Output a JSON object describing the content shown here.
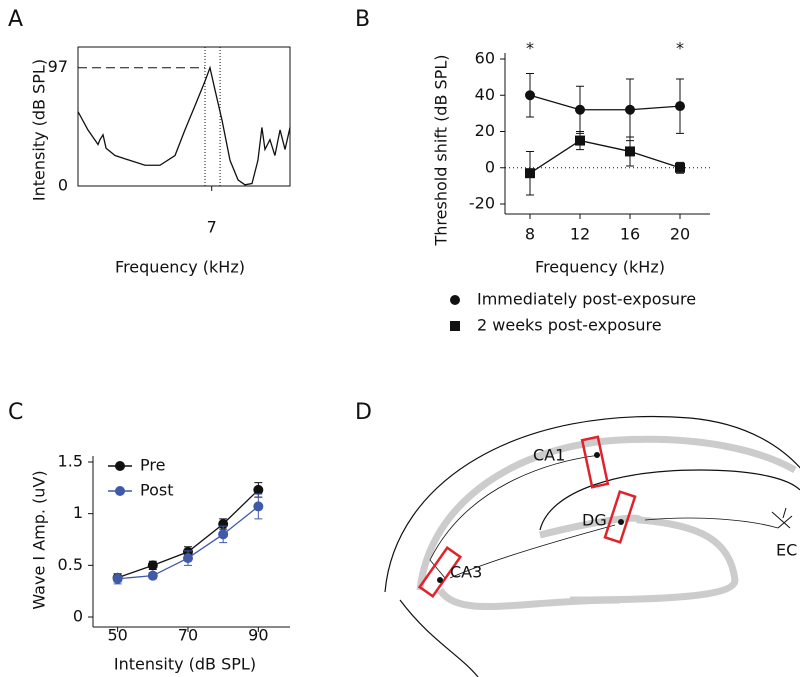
{
  "chart_data": [
    {
      "panel": "A",
      "type": "line",
      "xlabel": "Frequency (kHz)",
      "ylabel": "Intensity (dB SPL)",
      "x": [
        0,
        0.52,
        1.05,
        1.15,
        1.31,
        1.47,
        1.94,
        2.72,
        3.51,
        4.29,
        5.08,
        5.6,
        6.13,
        6.65,
        6.91,
        7.17,
        7.54,
        7.96,
        8.38,
        8.74,
        9.11,
        9.42,
        9.63,
        9.79,
        10.05,
        10.31,
        10.58,
        10.84,
        11.1
      ],
      "series": [
        {
          "color": "#111111",
          "values": [
            61,
            46,
            34,
            38,
            42,
            31,
            25,
            21,
            17,
            17,
            25,
            46,
            66,
            86,
            97,
            79,
            54,
            21,
            5,
            1,
            2,
            21,
            48,
            30,
            38,
            25,
            46,
            30,
            48
          ]
        }
      ],
      "xlim": [
        0,
        11.1
      ],
      "ylim": [
        0,
        114
      ],
      "xticks": [
        7
      ],
      "yticks": [
        0,
        97
      ],
      "hline": 97,
      "vlines": [
        6.65,
        7.44
      ]
    },
    {
      "panel": "B",
      "type": "line",
      "xlabel": "Frequency (kHz)",
      "ylabel": "Threshold shift (dB SPL)",
      "x": [
        8,
        12,
        16,
        20
      ],
      "series": [
        {
          "name": "Immediately post-exposure",
          "color": "#111111",
          "marker": "circle",
          "values": [
            40,
            32,
            32,
            34
          ],
          "errors": [
            12,
            13,
            17,
            15
          ]
        },
        {
          "name": "2 weeks post-exposure",
          "color": "#111111",
          "marker": "square",
          "values": [
            -3,
            15,
            9,
            0
          ],
          "errors": [
            12,
            5,
            8,
            3
          ]
        }
      ],
      "annotations": [
        {
          "text": "*",
          "x": 8
        },
        {
          "text": "*",
          "x": 20
        }
      ],
      "xlim": [
        6,
        22.4
      ],
      "ylim": [
        -20,
        60
      ],
      "xticks": [
        8,
        12,
        16,
        20
      ],
      "yticks": [
        -20,
        0,
        20,
        40,
        60
      ],
      "hline": 0
    },
    {
      "panel": "C",
      "type": "line",
      "xlabel": "Intensity (dB SPL)",
      "ylabel": "Wave I Amp. (uV)",
      "x": [
        50,
        60,
        70,
        80,
        90
      ],
      "series": [
        {
          "name": "Pre",
          "color": "#111111",
          "marker": "circle",
          "values": [
            0.38,
            0.5,
            0.63,
            0.9,
            1.23
          ],
          "errors": [
            0.04,
            0.04,
            0.05,
            0.05,
            0.07
          ]
        },
        {
          "name": "Post",
          "color": "#3f5aa8",
          "marker": "circle",
          "values": [
            0.37,
            0.4,
            0.57,
            0.8,
            1.07
          ],
          "errors": [
            0.05,
            0.03,
            0.07,
            0.08,
            0.12
          ]
        }
      ],
      "xlim": [
        43,
        99
      ],
      "ylim": [
        0,
        1.5
      ],
      "xticks": [
        50,
        70,
        90
      ],
      "yticks": [
        0,
        0.5,
        1,
        1.5
      ]
    }
  ],
  "diagram": {
    "panel": "D",
    "labels": [
      "CA1",
      "DG",
      "CA3",
      "EC"
    ]
  }
}
